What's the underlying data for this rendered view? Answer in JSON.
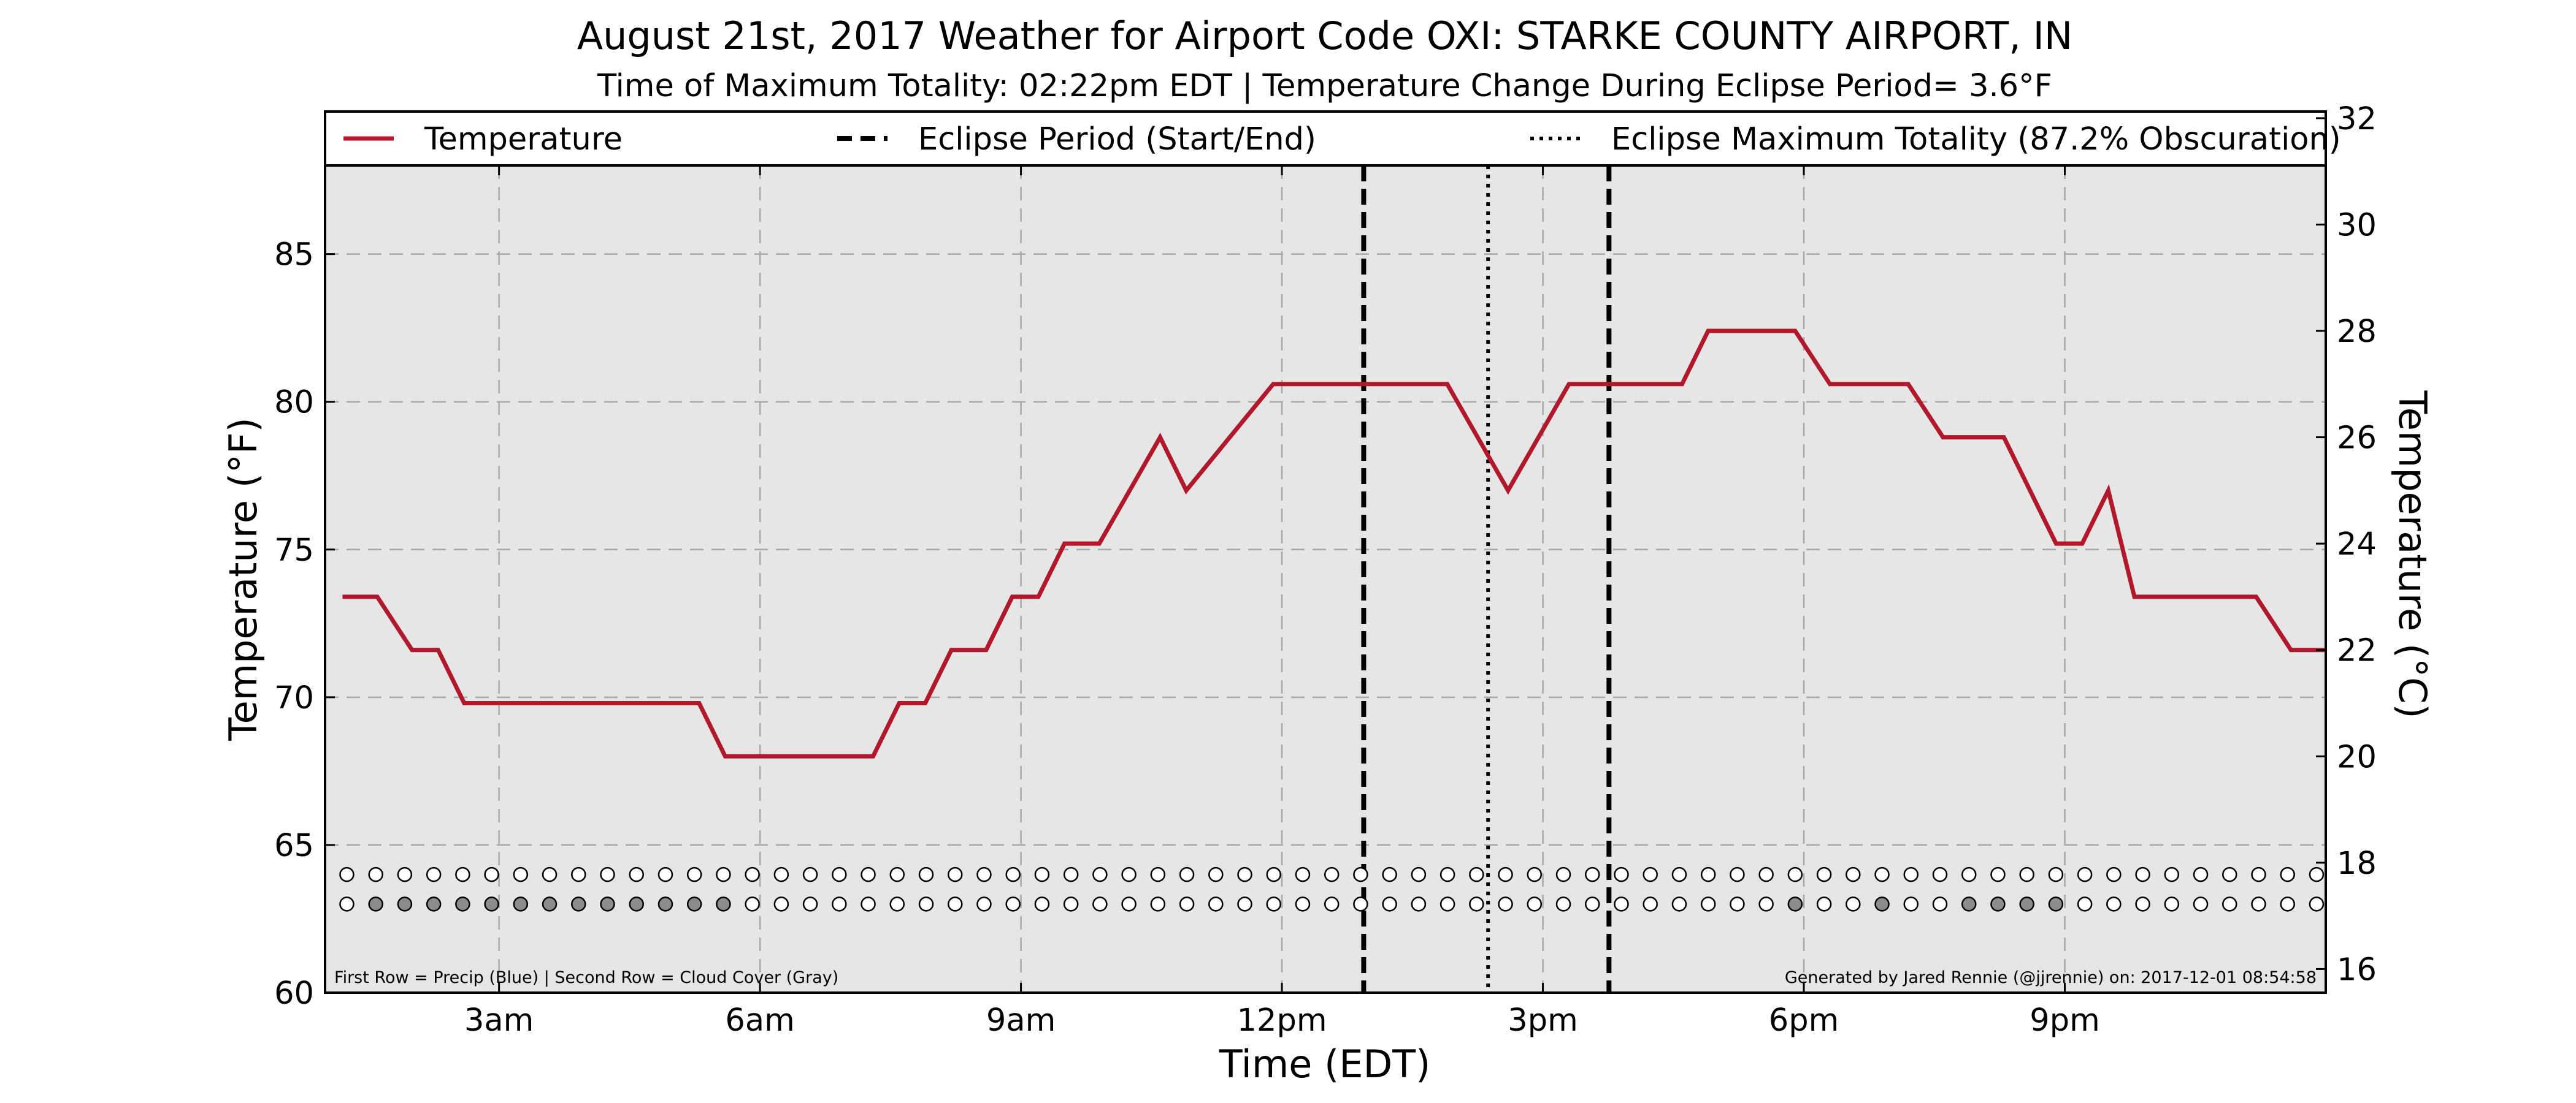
{
  "chart_data": {
    "type": "line",
    "title": "August 21st, 2017 Weather for Airport Code OXI: STARKE COUNTY AIRPORT, IN",
    "subtitle": "Time of Maximum Totality: 02:22pm EDT | Temperature Change During Eclipse Period= 3.6°F",
    "xlabel": "Time (EDT)",
    "ylabel_left": "Temperature (°F)",
    "ylabel_right": "Temperature (°C)",
    "xlim": [
      1.0,
      24.0
    ],
    "ylim": [
      60,
      88
    ],
    "grid": true,
    "x_ticks": [
      {
        "value": 3,
        "label": "3am"
      },
      {
        "value": 6,
        "label": "6am"
      },
      {
        "value": 9,
        "label": "9am"
      },
      {
        "value": 12,
        "label": "12pm"
      },
      {
        "value": 15,
        "label": "3pm"
      },
      {
        "value": 18,
        "label": "6pm"
      },
      {
        "value": 21,
        "label": "9pm"
      }
    ],
    "y_ticks_left": [
      60,
      65,
      70,
      75,
      80,
      85
    ],
    "y_ticks_right": [
      16,
      18,
      20,
      22,
      24,
      26,
      28,
      30,
      32
    ],
    "legend": {
      "placement": "top",
      "entries": [
        {
          "label": "Temperature",
          "style": "solid",
          "color": "#b2182b"
        },
        {
          "label": "Eclipse Period (Start/End)",
          "style": "dashed",
          "color": "#000000"
        },
        {
          "label": "Eclipse Maximum Totality (87.2% Obscuration)",
          "style": "dotted",
          "color": "#000000"
        }
      ]
    },
    "series": [
      {
        "name": "Temperature",
        "color": "#b2182b",
        "points": [
          [
            1.2,
            73.4
          ],
          [
            1.6,
            73.4
          ],
          [
            2.0,
            71.6
          ],
          [
            2.3,
            71.6
          ],
          [
            2.6,
            69.8
          ],
          [
            3.0,
            69.8
          ],
          [
            4.0,
            69.8
          ],
          [
            5.0,
            69.8
          ],
          [
            5.3,
            69.8
          ],
          [
            5.6,
            68.0
          ],
          [
            6.0,
            68.0
          ],
          [
            7.0,
            68.0
          ],
          [
            7.3,
            68.0
          ],
          [
            7.6,
            69.8
          ],
          [
            7.9,
            69.8
          ],
          [
            8.2,
            71.6
          ],
          [
            8.6,
            71.6
          ],
          [
            8.9,
            73.4
          ],
          [
            9.2,
            73.4
          ],
          [
            9.5,
            75.2
          ],
          [
            9.9,
            75.2
          ],
          [
            10.6,
            78.8
          ],
          [
            10.9,
            77.0
          ],
          [
            11.9,
            80.6
          ],
          [
            12.0,
            80.6
          ],
          [
            12.9,
            80.6
          ],
          [
            13.9,
            80.6
          ],
          [
            14.6,
            77.0
          ],
          [
            15.3,
            80.6
          ],
          [
            15.6,
            80.6
          ],
          [
            16.0,
            80.6
          ],
          [
            16.6,
            80.6
          ],
          [
            16.9,
            82.4
          ],
          [
            17.6,
            82.4
          ],
          [
            17.9,
            82.4
          ],
          [
            18.3,
            80.6
          ],
          [
            18.6,
            80.6
          ],
          [
            19.2,
            80.6
          ],
          [
            19.6,
            78.8
          ],
          [
            19.9,
            78.8
          ],
          [
            20.3,
            78.8
          ],
          [
            20.9,
            75.2
          ],
          [
            21.2,
            75.2
          ],
          [
            21.5,
            77.0
          ],
          [
            21.8,
            73.4
          ],
          [
            22.3,
            73.4
          ],
          [
            22.9,
            73.4
          ],
          [
            23.2,
            73.4
          ],
          [
            23.6,
            71.6
          ],
          [
            24.0,
            71.6
          ]
        ]
      }
    ],
    "eclipse": {
      "start": 12.94,
      "end": 15.76,
      "maximum_totality": 14.37
    },
    "marker_rows": {
      "precip_row_y": 64.0,
      "cloud_row_y": 63.0,
      "marker_start": 1.25,
      "marker_step": 0.333,
      "marker_count": 69,
      "precip_filled_indices": [],
      "cloud_filled_indices": [
        1,
        2,
        3,
        4,
        5,
        6,
        7,
        8,
        9,
        10,
        11,
        12,
        13,
        50,
        53,
        56,
        57,
        58,
        59
      ],
      "precip_color": "#4a7fd6",
      "cloud_color": "#8c8c8c"
    },
    "footnote_left": "First Row = Precip (Blue) | Second Row = Cloud Cover (Gray)",
    "footnote_right": "Generated by Jared Rennie (@jjrennie) on: 2017-12-01 08:54:58",
    "colors": {
      "plot_background": "#e6e6e6",
      "line": "#b2182b",
      "grid": "#a8a8a8"
    }
  }
}
